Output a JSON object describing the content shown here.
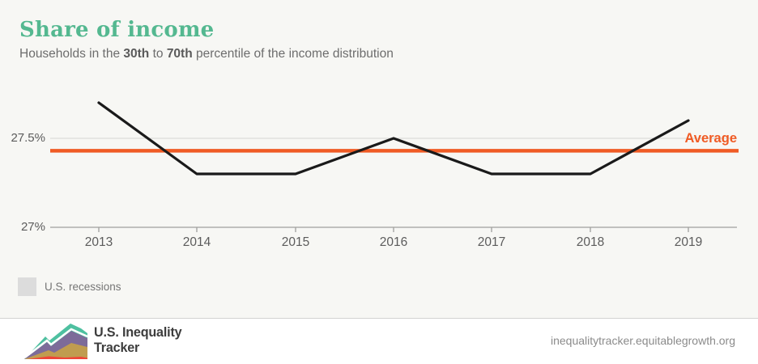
{
  "header": {
    "title": "Share of income",
    "subtitle": {
      "pre": "Households in the ",
      "bold1": "30th",
      "mid": " to ",
      "bold2": "70th",
      "post": " percentile of the income distribution"
    }
  },
  "chart_data": {
    "type": "line",
    "title": "Share of income",
    "x": [
      2013,
      2014,
      2015,
      2016,
      2017,
      2018,
      2019
    ],
    "series": [
      {
        "name": "Share of income, 30th to 70th percentile",
        "values": [
          27.7,
          27.3,
          27.3,
          27.5,
          27.3,
          27.3,
          27.6
        ]
      }
    ],
    "average_line": {
      "label": "Average",
      "value": 27.43,
      "color": "#f05b24"
    },
    "yticks": [
      {
        "label": "27.5%",
        "value": 27.5
      },
      {
        "label": "27%",
        "value": 27.0
      }
    ],
    "ylim": [
      26.99,
      27.82
    ],
    "xlabel": "",
    "ylabel": "",
    "grid": "horizontal-27.5-only",
    "legend_position": "bottom-left",
    "line_color": "#1a1a1a"
  },
  "legend": {
    "items": [
      {
        "label": "U.S. recessions",
        "swatch_color": "#dcdcdc"
      }
    ]
  },
  "footer": {
    "brand_line1": "U.S. Inequality",
    "brand_line2": "Tracker",
    "url": "inequalitytracker.equitablegrowth.org"
  },
  "colors": {
    "background": "#f7f7f4",
    "footer_background": "#ffffff",
    "title_teal": "#54b890",
    "average_orange": "#f05b24",
    "data_line_black": "#1a1a1a",
    "gridline_gray": "#d4d4d2",
    "axis_gray": "#a0a09e",
    "recession_swatch": "#dcdcdc",
    "logo_teal": "#4ec0a0",
    "logo_purple": "#7d6b99",
    "logo_gold": "#c09c4f",
    "logo_red": "#ef4538"
  }
}
